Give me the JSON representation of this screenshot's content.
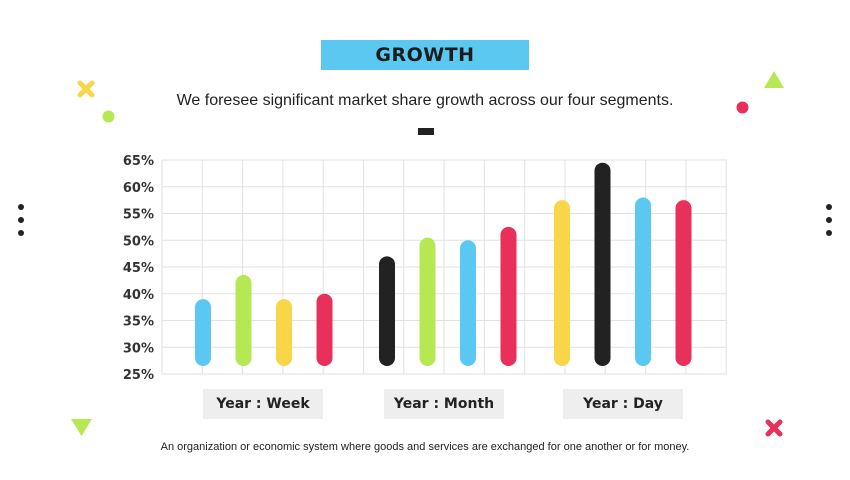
{
  "slide": {
    "title": "GROWTH",
    "subtitle": "We foresee significant market share growth across our four segments.",
    "footer": "An organization or economic system where goods and services are exchanged for one another or for money."
  },
  "colors": {
    "title_box": "#5BC8F2",
    "blue": "#5BC8F2",
    "green": "#B5E853",
    "yellow": "#F9D648",
    "red": "#E8305A",
    "black": "#222222"
  },
  "chart_data": {
    "type": "bar",
    "style": "range-bars",
    "ylim": [
      25,
      65
    ],
    "y_ticks": [
      "25%",
      "30%",
      "35%",
      "40%",
      "45%",
      "50%",
      "55%",
      "60%",
      "65%"
    ],
    "grid": true,
    "categories": [
      "Year : Week",
      "Year : Month",
      "Year : Day"
    ],
    "groups": [
      {
        "category": "Year : Week",
        "bars": [
          {
            "color": "blue",
            "low": 28,
            "high": 37.5
          },
          {
            "color": "green",
            "low": 28,
            "high": 42
          },
          {
            "color": "yellow",
            "low": 28,
            "high": 37.5
          },
          {
            "color": "red",
            "low": 28,
            "high": 38.5
          }
        ]
      },
      {
        "category": "Year : Month",
        "bars": [
          {
            "color": "black",
            "low": 28,
            "high": 45.5
          },
          {
            "color": "green",
            "low": 28,
            "high": 49
          },
          {
            "color": "blue",
            "low": 28,
            "high": 48.5
          },
          {
            "color": "red",
            "low": 28,
            "high": 51
          }
        ]
      },
      {
        "category": "Year : Day",
        "bars": [
          {
            "color": "yellow",
            "low": 28,
            "high": 56
          },
          {
            "color": "black",
            "low": 28,
            "high": 63
          },
          {
            "color": "blue",
            "low": 28,
            "high": 56.5
          },
          {
            "color": "red",
            "low": 28,
            "high": 56
          }
        ]
      }
    ]
  }
}
